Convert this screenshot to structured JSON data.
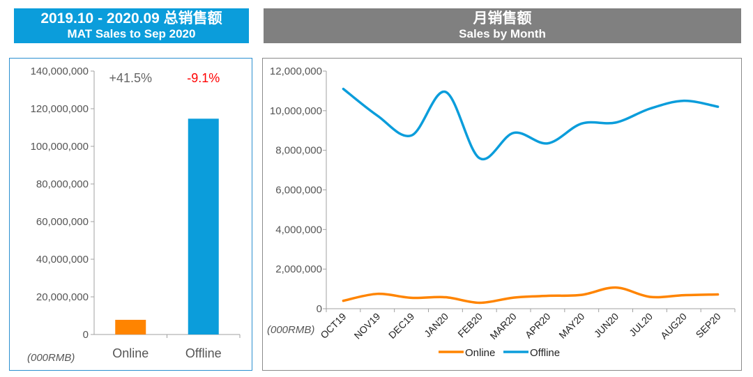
{
  "colors": {
    "online": "#ff8400",
    "offline": "#0b9ddb",
    "negative": "#ff0000",
    "growth_positive": "#666666"
  },
  "titles": {
    "left_line1": "2019.10 - 2020.09 总销售额",
    "left_line2": "MAT Sales to Sep 2020",
    "right_line1": "月销售额",
    "right_line2": "Sales by Month"
  },
  "chart_data": [
    {
      "type": "bar",
      "title": "2019.10 - 2020.09 总销售额 / MAT Sales to Sep 2020",
      "categories": [
        "Online",
        "Offline"
      ],
      "values": [
        7800000,
        114700000
      ],
      "growth_labels": [
        "+41.5%",
        "-9.1%"
      ],
      "unit_label": "(000RMB)",
      "ylim": [
        0,
        140000000
      ],
      "yticks": [
        0,
        20000000,
        40000000,
        60000000,
        80000000,
        100000000,
        120000000,
        140000000
      ],
      "ytick_labels": [
        "0",
        "20,000,000",
        "40,000,000",
        "60,000,000",
        "80,000,000",
        "100,000,000",
        "120,000,000",
        "140,000,000"
      ]
    },
    {
      "type": "line",
      "title": "月销售额 / Sales by Month",
      "categories": [
        "OCT19",
        "NOV19",
        "DEC19",
        "JAN20",
        "FEB20",
        "MAR20",
        "APR20",
        "MAY20",
        "JUN20",
        "JUL20",
        "AUG20",
        "SEP20"
      ],
      "series": [
        {
          "name": "Online",
          "values": [
            400000,
            750000,
            550000,
            580000,
            300000,
            560000,
            650000,
            700000,
            1070000,
            600000,
            680000,
            720000
          ]
        },
        {
          "name": "Offline",
          "values": [
            11100000,
            9750000,
            8750000,
            10950000,
            7600000,
            8880000,
            8350000,
            9350000,
            9400000,
            10100000,
            10500000,
            10200000
          ]
        }
      ],
      "unit_label": "(000RMB)",
      "ylim": [
        0,
        12000000
      ],
      "yticks": [
        0,
        2000000,
        4000000,
        6000000,
        8000000,
        10000000,
        12000000
      ],
      "ytick_labels": [
        "0",
        "2,000,000",
        "4,000,000",
        "6,000,000",
        "8,000,000",
        "10,000,000",
        "12,000,000"
      ],
      "legend": [
        "Online",
        "Offline"
      ],
      "legend_position": "bottom"
    }
  ]
}
